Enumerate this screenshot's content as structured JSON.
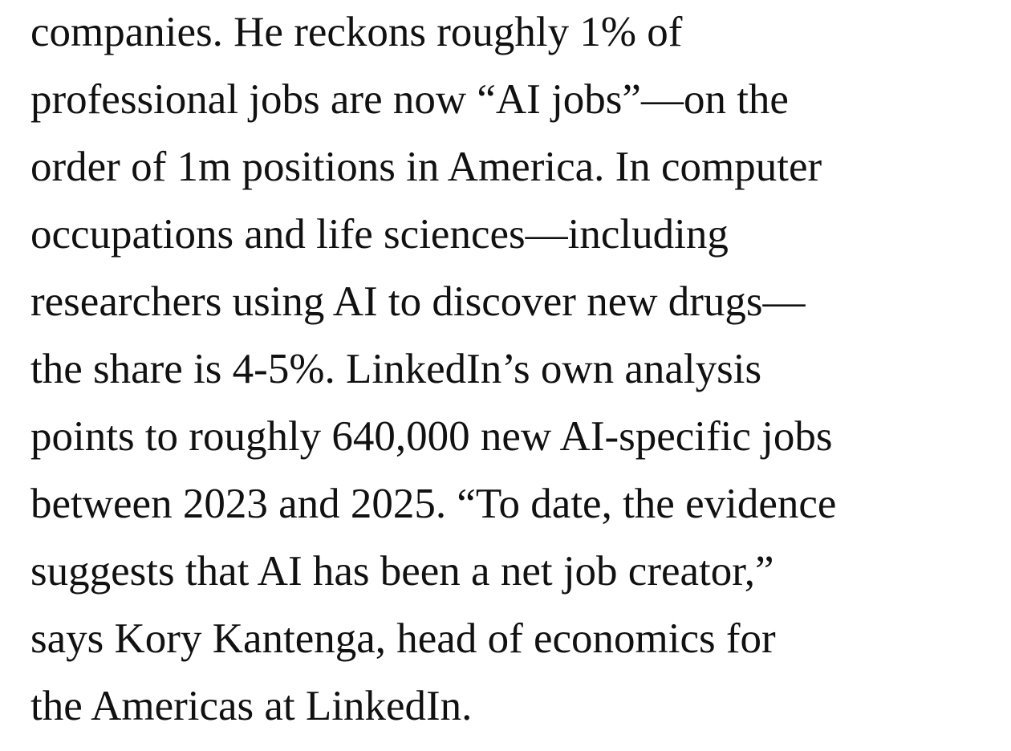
{
  "paragraph": {
    "lines": [
      "companies. He reckons roughly 1% of",
      "professional jobs are now “AI jobs”—on the",
      "order of 1m positions in America. In computer",
      "occupations and life sciences—including",
      "researchers using AI to discover new drugs—",
      "the share is 4-5%. LinkedIn’s own analysis",
      "points to roughly 640,000 new AI-specific jobs",
      "between 2023 and 2025. “To date, the evidence",
      "suggests that AI has been a net job creator,”",
      "says Kory Kantenga, head of economics for",
      "the Americas at LinkedIn."
    ]
  }
}
